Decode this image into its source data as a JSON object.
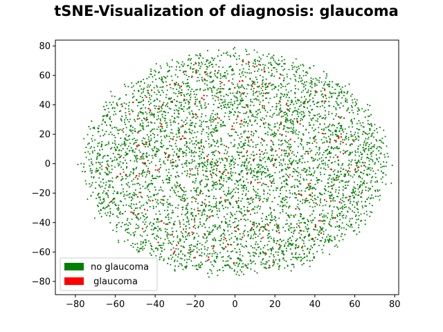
{
  "chart_data": {
    "type": "scatter",
    "title": "tSNE-Visualization of diagnosis: glaucoma",
    "xlabel": "",
    "ylabel": "",
    "xlim": [
      -90,
      82
    ],
    "ylim": [
      -89,
      84
    ],
    "xticks": [
      -80,
      -60,
      -40,
      -20,
      0,
      20,
      40,
      60,
      80
    ],
    "yticks": [
      -80,
      -60,
      -40,
      -20,
      0,
      20,
      40,
      60,
      80
    ],
    "grid": false,
    "legend_position": "lower-left",
    "legend": [
      {
        "label": "no glaucoma",
        "color": "#008000"
      },
      {
        "label": " glaucoma",
        "color": "#ff0000"
      }
    ],
    "series": [
      {
        "name": "no glaucoma",
        "color": "#008000",
        "distribution": "dense elliptical cloud",
        "center": [
          0,
          0
        ],
        "x_extent": [
          -83,
          75
        ],
        "y_extent": [
          -81,
          76
        ],
        "approx_count": 5000
      },
      {
        "name": " glaucoma",
        "color": "#ff0000",
        "distribution": "sparse points scattered within the same cloud",
        "center": [
          0,
          0
        ],
        "x_extent": [
          -70,
          65
        ],
        "y_extent": [
          -75,
          72
        ],
        "approx_count": 250
      }
    ]
  }
}
